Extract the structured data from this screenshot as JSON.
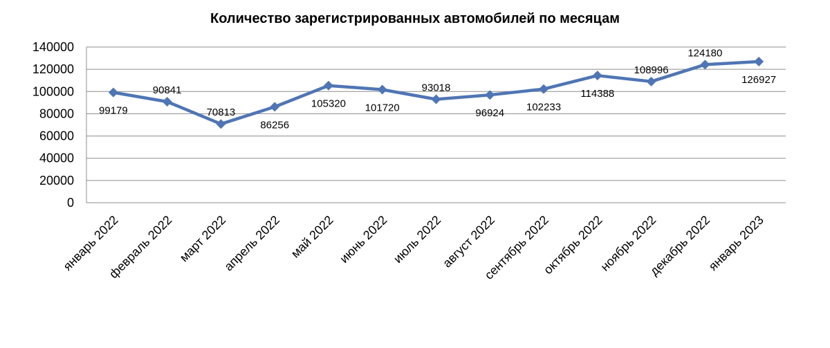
{
  "chart_data": {
    "type": "line",
    "title": "Количество зарегистрированных автомобилей по месяцам",
    "xlabel": "",
    "ylabel": "",
    "categories": [
      "январь 2022",
      "февраль 2022",
      "март 2022",
      "апрель 2022",
      "май 2022",
      "июнь 2022",
      "июль 2022",
      "август 2022",
      "сентябрь 2022",
      "октябрь 2022",
      "ноябрь 2022",
      "декабрь 2022",
      "январь 2023"
    ],
    "series": [
      {
        "values": [
          99179,
          90841,
          70813,
          86256,
          105320,
          101720,
          93018,
          96924,
          102233,
          114388,
          108996,
          124180,
          126927
        ]
      }
    ],
    "data_labels": [
      "99179",
      "90841",
      "70813",
      "86256",
      "105320",
      "101720",
      "93018",
      "96924",
      "102233",
      "114388",
      "108996",
      "124180",
      "126927"
    ],
    "data_label_positions": [
      "below",
      "above",
      "above",
      "below",
      "below",
      "below",
      "above",
      "below",
      "below",
      "below",
      "above",
      "above",
      "below"
    ],
    "ylim": [
      0,
      140000
    ],
    "yticks": [
      0,
      20000,
      40000,
      60000,
      80000,
      100000,
      120000,
      140000
    ],
    "ytick_labels": [
      "0",
      "20000",
      "40000",
      "60000",
      "80000",
      "100000",
      "120000",
      "140000"
    ],
    "grid": true,
    "legend": "none",
    "line_color": "#4F75B4",
    "grid_color": "#8C8C8C"
  }
}
